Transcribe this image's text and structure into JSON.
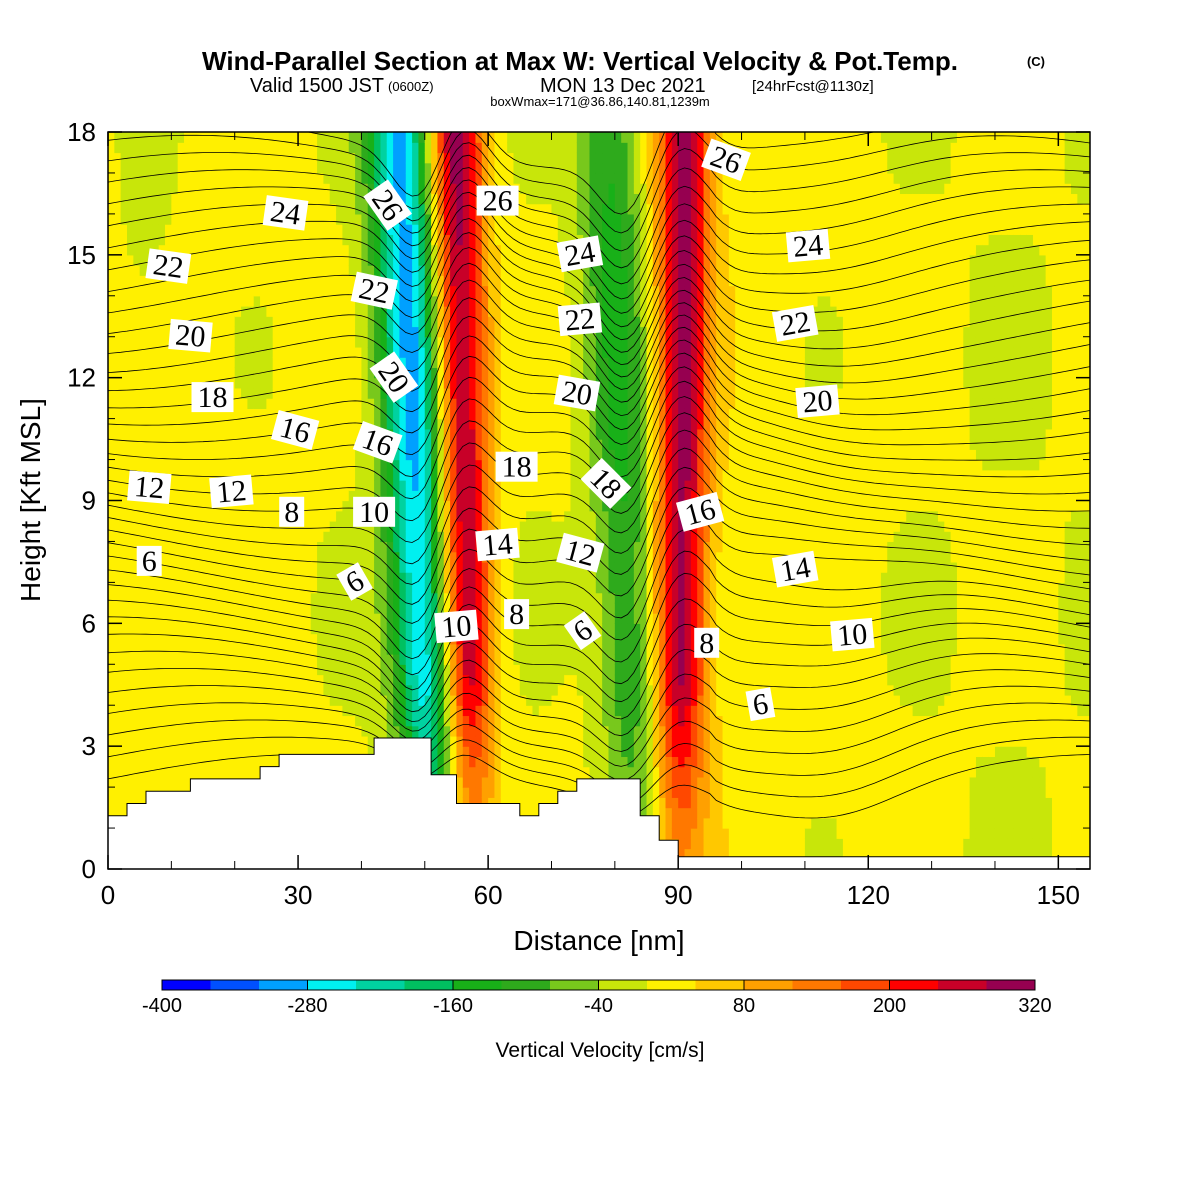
{
  "header": {
    "title": "Wind-Parallel Section at Max W: Vertical Velocity & Pot.Temp.",
    "title_mark": "(C)",
    "valid_prefix": "Valid 1500 JST",
    "valid_utc": "(0600Z)",
    "valid_date": "MON 13 Dec 2021",
    "fcst": "[24hrFcst@1130z]",
    "boxline": "boxWmax=171@36.86,140.81,1239m"
  },
  "chart_data": {
    "type": "heatmap",
    "title": "Wind-Parallel Section at Max W: Vertical Velocity & Pot.Temp.",
    "xlabel": "Distance [nm]",
    "ylabel": "Height [Kft MSL]",
    "xlim": [
      0,
      155
    ],
    "ylim": [
      0,
      18
    ],
    "x_ticks": [
      0,
      30,
      60,
      90,
      120,
      150
    ],
    "y_ticks": [
      0,
      3,
      6,
      9,
      12,
      15,
      18
    ],
    "colorbar": {
      "label": "Vertical Velocity [cm/s]",
      "levels": [
        -400,
        -360,
        -320,
        -280,
        -240,
        -200,
        -160,
        -120,
        -80,
        -40,
        0,
        40,
        80,
        120,
        160,
        200,
        240,
        280,
        320
      ],
      "tick_labels": [
        -400,
        -280,
        -160,
        -40,
        80,
        200,
        320
      ],
      "colors": [
        "#0000ff",
        "#0050ff",
        "#00a0ff",
        "#00f0f0",
        "#00d2a0",
        "#00c060",
        "#18b018",
        "#2eaa1c",
        "#78c81c",
        "#c8e60a",
        "#fff000",
        "#ffc800",
        "#ffa000",
        "#ff7800",
        "#ff4800",
        "#ff0000",
        "#c80028",
        "#960050",
        "#6e0082"
      ]
    },
    "vertical_velocity_bands": [
      {
        "name": "downdraft",
        "center_top": 46,
        "center_bottom": 52,
        "peak": -300
      },
      {
        "name": "updraft",
        "center_top": 55,
        "center_bottom": 57,
        "peak": 300
      },
      {
        "name": "downdraft",
        "center_top": 79,
        "center_bottom": 84,
        "peak": -140
      },
      {
        "name": "updraft",
        "center_top": 91,
        "center_bottom": 90,
        "peak": 280
      }
    ],
    "terrain": [
      {
        "x": 0,
        "h": 1.3
      },
      {
        "x": 3,
        "h": 1.6
      },
      {
        "x": 6,
        "h": 1.9
      },
      {
        "x": 13,
        "h": 2.2
      },
      {
        "x": 24,
        "h": 2.5
      },
      {
        "x": 27,
        "h": 2.8
      },
      {
        "x": 42,
        "h": 3.2
      },
      {
        "x": 51,
        "h": 2.3
      },
      {
        "x": 55,
        "h": 1.6
      },
      {
        "x": 65,
        "h": 1.3
      },
      {
        "x": 68,
        "h": 1.6
      },
      {
        "x": 71,
        "h": 1.9
      },
      {
        "x": 74,
        "h": 2.2
      },
      {
        "x": 84,
        "h": 1.3
      },
      {
        "x": 87,
        "h": 0.7
      },
      {
        "x": 90,
        "h": 0.3
      },
      {
        "x": 155,
        "h": 0.3
      }
    ],
    "theta_contour_labels": [
      {
        "text": "24",
        "x": 28,
        "y": 16.0,
        "rot": 8
      },
      {
        "text": "26",
        "x": 44,
        "y": 16.2,
        "rot": 55
      },
      {
        "text": "26",
        "x": 61.5,
        "y": 16.3,
        "rot": 0
      },
      {
        "text": "26",
        "x": 97.5,
        "y": 17.3,
        "rot": 20
      },
      {
        "text": "22",
        "x": 9.5,
        "y": 14.7,
        "rot": 8
      },
      {
        "text": "24",
        "x": 74.5,
        "y": 15.0,
        "rot": -10
      },
      {
        "text": "24",
        "x": 110.5,
        "y": 15.2,
        "rot": -5
      },
      {
        "text": "22",
        "x": 42,
        "y": 14.1,
        "rot": 12
      },
      {
        "text": "20",
        "x": 13,
        "y": 13.0,
        "rot": 5
      },
      {
        "text": "22",
        "x": 74.5,
        "y": 13.4,
        "rot": -5
      },
      {
        "text": "22",
        "x": 108.5,
        "y": 13.3,
        "rot": -10
      },
      {
        "text": "20",
        "x": 45,
        "y": 12.0,
        "rot": 55
      },
      {
        "text": "18",
        "x": 16.5,
        "y": 11.5,
        "rot": 0
      },
      {
        "text": "20",
        "x": 74,
        "y": 11.6,
        "rot": 10
      },
      {
        "text": "20",
        "x": 112,
        "y": 11.4,
        "rot": -5
      },
      {
        "text": "16",
        "x": 29.5,
        "y": 10.7,
        "rot": 15
      },
      {
        "text": "16",
        "x": 42.5,
        "y": 10.4,
        "rot": 20
      },
      {
        "text": "18",
        "x": 64.5,
        "y": 9.8,
        "rot": 0
      },
      {
        "text": "18",
        "x": 78.5,
        "y": 9.4,
        "rot": 45
      },
      {
        "text": "12",
        "x": 6.5,
        "y": 9.3,
        "rot": 5
      },
      {
        "text": "12",
        "x": 19.5,
        "y": 9.2,
        "rot": -5
      },
      {
        "text": "8",
        "x": 29,
        "y": 8.7,
        "rot": 0
      },
      {
        "text": "10",
        "x": 42,
        "y": 8.7,
        "rot": 0
      },
      {
        "text": "16",
        "x": 93.5,
        "y": 8.7,
        "rot": -15
      },
      {
        "text": "14",
        "x": 61.5,
        "y": 7.9,
        "rot": -5
      },
      {
        "text": "12",
        "x": 74.5,
        "y": 7.7,
        "rot": 15
      },
      {
        "text": "14",
        "x": 108.5,
        "y": 7.3,
        "rot": -10
      },
      {
        "text": "6",
        "x": 6.5,
        "y": 7.5,
        "rot": 0
      },
      {
        "text": "6",
        "x": 39,
        "y": 7.0,
        "rot": -30
      },
      {
        "text": "10",
        "x": 55,
        "y": 5.9,
        "rot": -5
      },
      {
        "text": "8",
        "x": 64.5,
        "y": 6.2,
        "rot": 0
      },
      {
        "text": "6",
        "x": 75,
        "y": 5.8,
        "rot": -35
      },
      {
        "text": "10",
        "x": 117.5,
        "y": 5.7,
        "rot": -5
      },
      {
        "text": "8",
        "x": 94.5,
        "y": 5.5,
        "rot": 0
      },
      {
        "text": "6",
        "x": 103,
        "y": 4.0,
        "rot": -10
      }
    ]
  }
}
